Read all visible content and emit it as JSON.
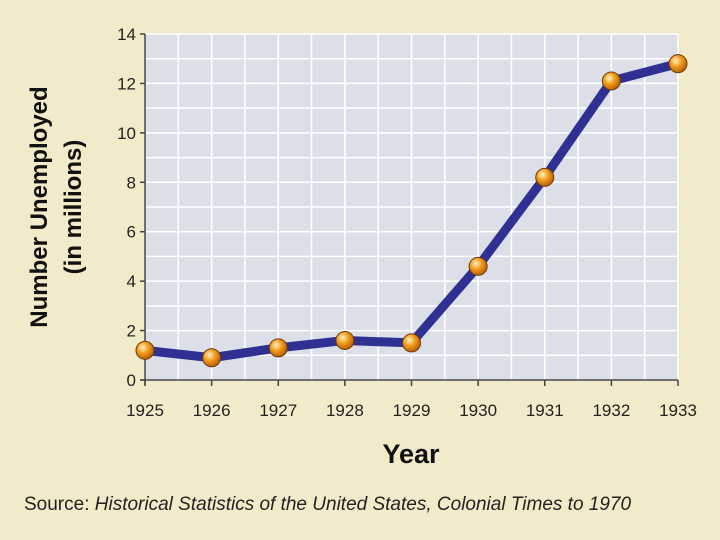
{
  "chart_data": {
    "type": "line",
    "title": "",
    "xlabel": "Year",
    "ylabel": "Number Unemployed",
    "ylabel_line2": "(in millions)",
    "x": [
      "1925",
      "1926",
      "1927",
      "1928",
      "1929",
      "1930",
      "1931",
      "1932",
      "1933"
    ],
    "series": [
      {
        "values": [
          1.2,
          0.9,
          1.3,
          1.6,
          1.5,
          4.6,
          8.2,
          12.1,
          12.8
        ]
      }
    ],
    "ylim": [
      0,
      14
    ],
    "yticks": [
      "0",
      "2",
      "4",
      "6",
      "8",
      "10",
      "12",
      "14"
    ],
    "grid": true,
    "colors": {
      "plot_background": "#dcdfe8",
      "page_background": "#f2ebca",
      "gridline": "#ffffff",
      "line": "#2e3192",
      "marker": "#f39c1e"
    }
  },
  "source": {
    "label": "Source:",
    "text": "Historical Statistics of the United States, Colonial Times to 1970"
  }
}
